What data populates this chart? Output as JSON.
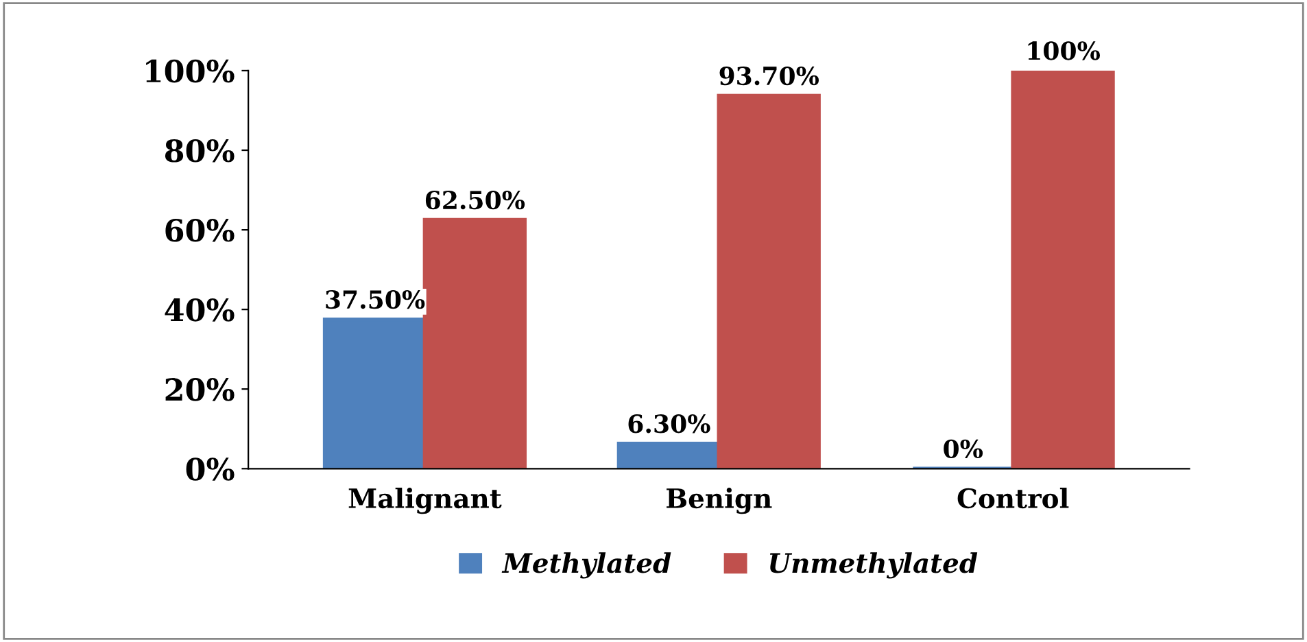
{
  "chart_data": {
    "type": "bar",
    "categories": [
      "Malignant",
      "Benign",
      "Control"
    ],
    "series": [
      {
        "name": "Methylated",
        "color": "#4f81bd",
        "values": [
          37.5,
          6.3,
          0
        ],
        "value_labels": [
          "37.50%",
          "6.30%",
          "0%"
        ]
      },
      {
        "name": "Unmethylated",
        "color": "#c0504d",
        "values": [
          62.5,
          93.7,
          100
        ],
        "value_labels": [
          "62.50%",
          "93.70%",
          "100%"
        ]
      }
    ],
    "ylim": [
      0,
      100
    ],
    "yticks": [
      {
        "value": 0,
        "label": "0%"
      },
      {
        "value": 20,
        "label": "20%"
      },
      {
        "value": 40,
        "label": "40%"
      },
      {
        "value": 60,
        "label": "60%"
      },
      {
        "value": 80,
        "label": "80%"
      },
      {
        "value": 100,
        "label": "100%"
      }
    ],
    "grid": false,
    "legend": "bottom"
  }
}
